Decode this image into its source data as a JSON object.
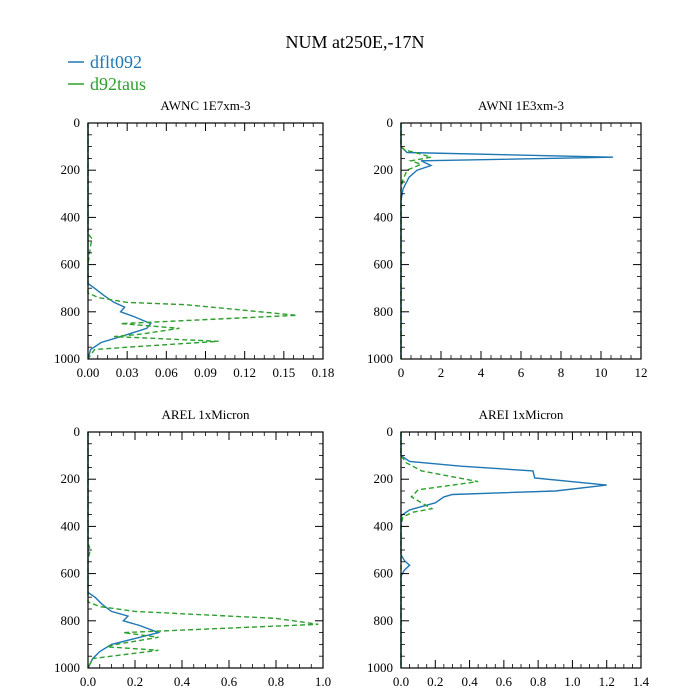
{
  "figure": {
    "title": "NUM at250E,-17N",
    "legend": [
      {
        "label": "dflt092",
        "color": "#1f77b4",
        "dash": "solid"
      },
      {
        "label": "d92taus",
        "color": "#2ca02c",
        "dash": "dashed"
      }
    ],
    "legend_position": "top-left"
  },
  "chart_data": [
    {
      "type": "line",
      "title": "AWNC  1E7xm-3",
      "xlim": [
        0,
        0.18
      ],
      "ylim": [
        1000,
        0
      ],
      "xticks": [
        "0.00",
        "0.03",
        "0.06",
        "0.09",
        "0.12",
        "0.15",
        "0.18"
      ],
      "yticks": [
        "0",
        "200",
        "400",
        "600",
        "800",
        "1000"
      ],
      "series": [
        {
          "name": "dflt092",
          "points": [
            [
              0,
              0
            ],
            [
              0,
              680
            ],
            [
              0.005,
              700
            ],
            [
              0.012,
              730
            ],
            [
              0.02,
              760
            ],
            [
              0.028,
              780
            ],
            [
              0.025,
              800
            ],
            [
              0.035,
              820
            ],
            [
              0.048,
              850
            ],
            [
              0.045,
              870
            ],
            [
              0.028,
              900
            ],
            [
              0.01,
              930
            ],
            [
              0.002,
              960
            ],
            [
              0,
              1000
            ]
          ]
        },
        {
          "name": "d92taus",
          "points": [
            [
              0,
              0
            ],
            [
              0,
              470
            ],
            [
              0.003,
              490
            ],
            [
              0.002,
              520
            ],
            [
              0.001,
              560
            ],
            [
              0,
              600
            ],
            [
              0,
              720
            ],
            [
              0.008,
              740
            ],
            [
              0.03,
              760
            ],
            [
              0.075,
              770
            ],
            [
              0.16,
              815
            ],
            [
              0.025,
              850
            ],
            [
              0.07,
              870
            ],
            [
              0.04,
              895
            ],
            [
              0.02,
              905
            ],
            [
              0.1,
              925
            ],
            [
              0.03,
              950
            ],
            [
              0.005,
              960
            ],
            [
              0,
              1000
            ]
          ]
        }
      ]
    },
    {
      "type": "line",
      "title": "AWNI  1E3xm-3",
      "xlim": [
        0,
        12
      ],
      "ylim": [
        1000,
        0
      ],
      "xticks": [
        "0",
        "2",
        "4",
        "6",
        "8",
        "10",
        "12"
      ],
      "yticks": [
        "0",
        "200",
        "400",
        "600",
        "800",
        "1000"
      ],
      "series": [
        {
          "name": "dflt092",
          "points": [
            [
              0,
              0
            ],
            [
              0,
              100
            ],
            [
              0.3,
              125
            ],
            [
              10.6,
              145
            ],
            [
              1,
              160
            ],
            [
              1.5,
              180
            ],
            [
              0.8,
              200
            ],
            [
              0.4,
              230
            ],
            [
              0.1,
              280
            ],
            [
              0,
              330
            ],
            [
              0,
              1000
            ]
          ]
        },
        {
          "name": "d92taus",
          "points": [
            [
              0,
              0
            ],
            [
              0,
              100
            ],
            [
              0.2,
              115
            ],
            [
              0.7,
              125
            ],
            [
              1.5,
              145
            ],
            [
              0.5,
              160
            ],
            [
              1,
              175
            ],
            [
              0.3,
              200
            ],
            [
              0.1,
              240
            ],
            [
              0,
              280
            ],
            [
              0,
              1000
            ]
          ]
        }
      ]
    },
    {
      "type": "line",
      "title": "AREL  1xMicron",
      "xlim": [
        0,
        1.0
      ],
      "ylim": [
        1000,
        0
      ],
      "xticks": [
        "0.0",
        "0.2",
        "0.4",
        "0.6",
        "0.8",
        "1.0"
      ],
      "yticks": [
        "0",
        "200",
        "400",
        "600",
        "800",
        "1000"
      ],
      "series": [
        {
          "name": "dflt092",
          "points": [
            [
              0,
              0
            ],
            [
              0,
              680
            ],
            [
              0.03,
              700
            ],
            [
              0.06,
              730
            ],
            [
              0.1,
              760
            ],
            [
              0.17,
              780
            ],
            [
              0.15,
              800
            ],
            [
              0.22,
              820
            ],
            [
              0.3,
              850
            ],
            [
              0.22,
              870
            ],
            [
              0.1,
              900
            ],
            [
              0.05,
              930
            ],
            [
              0.02,
              960
            ],
            [
              0,
              1000
            ]
          ]
        },
        {
          "name": "d92taus",
          "points": [
            [
              0,
              0
            ],
            [
              0,
              470
            ],
            [
              0.01,
              500
            ],
            [
              0,
              540
            ],
            [
              0,
              720
            ],
            [
              0.05,
              740
            ],
            [
              0.2,
              760
            ],
            [
              0.8,
              790
            ],
            [
              0.98,
              815
            ],
            [
              0.15,
              850
            ],
            [
              0.3,
              870
            ],
            [
              0.12,
              900
            ],
            [
              0.08,
              910
            ],
            [
              0.3,
              925
            ],
            [
              0.1,
              950
            ],
            [
              0.02,
              960
            ],
            [
              0,
              1000
            ]
          ]
        }
      ]
    },
    {
      "type": "line",
      "title": "AREI  1xMicron",
      "xlim": [
        0,
        1.4
      ],
      "ylim": [
        1000,
        0
      ],
      "xticks": [
        "0.0",
        "0.2",
        "0.4",
        "0.6",
        "0.8",
        "1.0",
        "1.2",
        "1.4"
      ],
      "yticks": [
        "0",
        "200",
        "400",
        "600",
        "800",
        "1000"
      ],
      "series": [
        {
          "name": "dflt092",
          "points": [
            [
              0,
              0
            ],
            [
              0,
              100
            ],
            [
              0.05,
              125
            ],
            [
              0.35,
              145
            ],
            [
              0.77,
              165
            ],
            [
              0.78,
              195
            ],
            [
              1.2,
              225
            ],
            [
              0.9,
              250
            ],
            [
              0.3,
              265
            ],
            [
              0.25,
              275
            ],
            [
              0.2,
              300
            ],
            [
              0.05,
              330
            ],
            [
              0,
              355
            ],
            [
              0,
              520
            ],
            [
              0.02,
              545
            ],
            [
              0.05,
              565
            ],
            [
              0.02,
              585
            ],
            [
              0,
              610
            ],
            [
              0,
              1000
            ]
          ]
        },
        {
          "name": "d92taus",
          "points": [
            [
              0,
              0
            ],
            [
              0,
              100
            ],
            [
              0.03,
              130
            ],
            [
              0.12,
              165
            ],
            [
              0.45,
              210
            ],
            [
              0.1,
              245
            ],
            [
              0.06,
              275
            ],
            [
              0.12,
              300
            ],
            [
              0.18,
              325
            ],
            [
              0.07,
              340
            ],
            [
              0.01,
              360
            ],
            [
              0,
              400
            ],
            [
              0,
              1000
            ]
          ]
        }
      ]
    }
  ]
}
